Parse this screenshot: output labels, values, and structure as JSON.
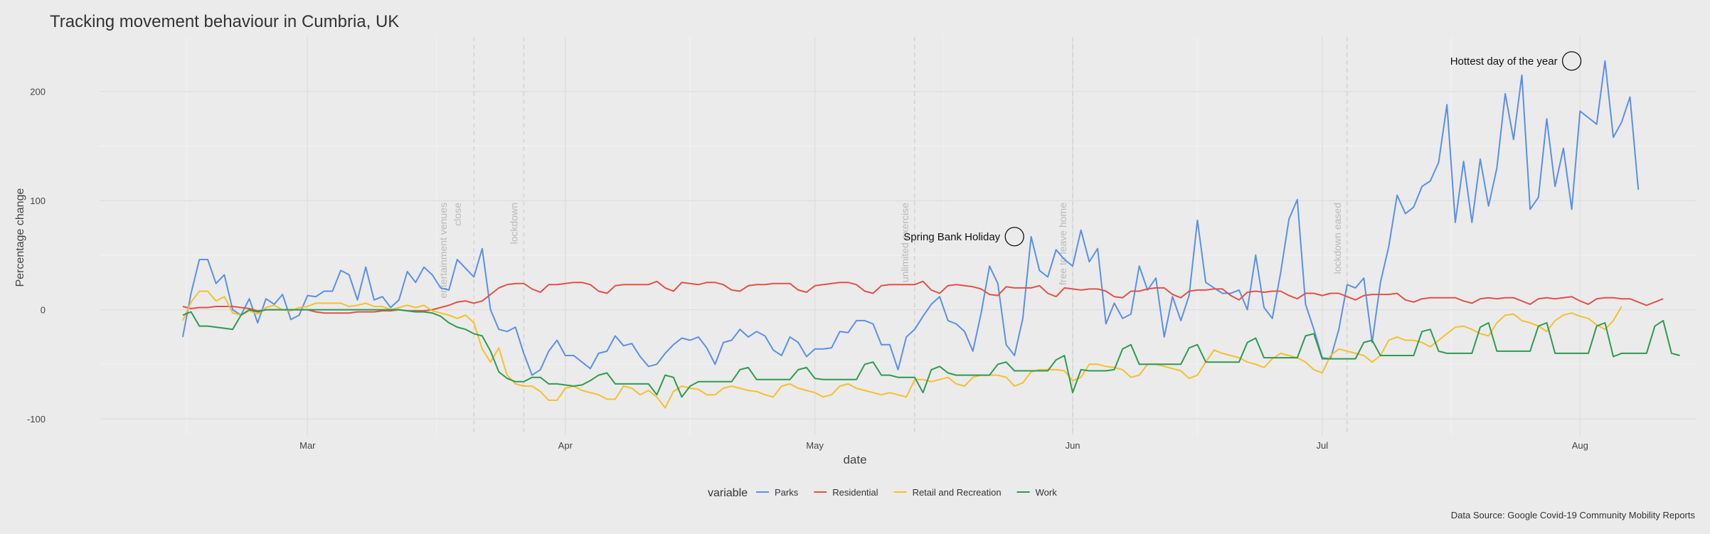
{
  "chart_data": {
    "type": "line",
    "title": "Tracking movement behaviour in Cumbria, UK",
    "xlabel": "date",
    "ylabel": "Percentage change",
    "caption": "Data Source: Google Covid-19 Community Mobility Reports",
    "x_start": "2020-02-15",
    "x_range": [
      "2020-02-05",
      "2020-08-15"
    ],
    "ylim": [
      -115,
      250
    ],
    "grid": true,
    "legend": {
      "title": "variable",
      "position": "bottom"
    },
    "x_ticks": [
      {
        "date": "2020-03-01",
        "label": "Mar"
      },
      {
        "date": "2020-04-01",
        "label": "Apr"
      },
      {
        "date": "2020-05-01",
        "label": "May"
      },
      {
        "date": "2020-06-01",
        "label": "Jun"
      },
      {
        "date": "2020-07-01",
        "label": "Jul"
      },
      {
        "date": "2020-08-01",
        "label": "Aug"
      }
    ],
    "y_ticks": [
      -100,
      0,
      100,
      200
    ],
    "events": [
      {
        "date": "2020-03-21",
        "lines": [
          "entertainment venues",
          "close"
        ]
      },
      {
        "date": "2020-03-27",
        "lines": [
          "lockdown"
        ]
      },
      {
        "date": "2020-05-13",
        "lines": [
          "unlimited exercise"
        ]
      },
      {
        "date": "2020-06-01",
        "lines": [
          "free to leave home"
        ]
      },
      {
        "date": "2020-07-04",
        "lines": [
          "lockdown eased"
        ]
      }
    ],
    "annotations": [
      {
        "label": "Spring Bank Holiday",
        "date": "2020-05-25",
        "y": 67
      },
      {
        "label": "Hottest day of the year",
        "date": "2020-07-31",
        "y": 228
      }
    ],
    "series": [
      {
        "name": "Parks",
        "color": "#5b8fe8",
        "values": [
          -25,
          15,
          46,
          46,
          24,
          32,
          0,
          -5,
          10,
          -12,
          10,
          5,
          14,
          -9,
          -5,
          13,
          12,
          17,
          17,
          36,
          32,
          9,
          39,
          9,
          12,
          2,
          9,
          35,
          25,
          39,
          32,
          20,
          18,
          46,
          38,
          30,
          56,
          0,
          -18,
          -20,
          -16,
          -40,
          -60,
          -55,
          -38,
          -28,
          -42,
          -42,
          -48,
          -54,
          -40,
          -38,
          -24,
          -33,
          -31,
          -43,
          -52,
          -50,
          -40,
          -32,
          -26,
          -28,
          -25,
          -35,
          -50,
          -30,
          -28,
          -18,
          -25,
          -20,
          -24,
          -37,
          -42,
          -25,
          -30,
          -43,
          -36,
          -36,
          -35,
          -20,
          -21,
          -10,
          -10,
          -13,
          -32,
          -32,
          -55,
          -25,
          -18,
          -6,
          5,
          12,
          -10,
          -13,
          -20,
          -38,
          -3,
          40,
          24,
          -32,
          -42,
          -8,
          67,
          36,
          30,
          55,
          46,
          40,
          73,
          44,
          56,
          -13,
          6,
          -8,
          -4,
          40,
          18,
          29,
          -25,
          12,
          -10,
          13,
          82,
          25,
          20,
          15,
          15,
          18,
          0,
          50,
          2,
          -8,
          34,
          83,
          101,
          5,
          -18,
          -44,
          -45,
          -18,
          23,
          20,
          29,
          -30,
          25,
          58,
          105,
          88,
          94,
          113,
          118,
          135,
          188,
          80,
          136,
          80,
          138,
          95,
          130,
          198,
          156,
          215,
          92,
          103,
          175,
          113,
          148,
          92,
          182,
          176,
          170,
          228,
          158,
          172,
          195,
          110
        ]
      },
      {
        "name": "Residential",
        "color": "#e0524a",
        "values": [
          3,
          1,
          2,
          2,
          3,
          3,
          3,
          2,
          1,
          -1,
          0,
          0,
          0,
          0,
          0,
          0,
          -2,
          -3,
          -3,
          -3,
          -3,
          -2,
          -2,
          -2,
          -1,
          -1,
          0,
          -1,
          -1,
          -1,
          0,
          2,
          4,
          7,
          8,
          6,
          8,
          14,
          20,
          23,
          24,
          24,
          19,
          16,
          23,
          23,
          24,
          25,
          25,
          23,
          17,
          15,
          22,
          23,
          23,
          23,
          23,
          26,
          20,
          17,
          25,
          24,
          23,
          25,
          25,
          23,
          18,
          17,
          22,
          23,
          23,
          24,
          24,
          24,
          18,
          16,
          22,
          23,
          24,
          25,
          25,
          23,
          17,
          15,
          22,
          23,
          23,
          23,
          23,
          26,
          18,
          15,
          22,
          23,
          22,
          21,
          19,
          14,
          13,
          21,
          20,
          20,
          20,
          22,
          15,
          12,
          20,
          19,
          18,
          19,
          19,
          17,
          12,
          11,
          17,
          17,
          19,
          20,
          20,
          14,
          11,
          17,
          18,
          18,
          19,
          19,
          13,
          9,
          16,
          17,
          16,
          17,
          17,
          13,
          10,
          15,
          15,
          13,
          15,
          15,
          12,
          9,
          13,
          14,
          14,
          14,
          15,
          9,
          7,
          10,
          11,
          11,
          11,
          11,
          8,
          6,
          10,
          11,
          10,
          11,
          11,
          8,
          5,
          10,
          11,
          10,
          11,
          12,
          8,
          5,
          10,
          11,
          11,
          10,
          10,
          7,
          4,
          7,
          10
        ]
      },
      {
        "name": "Retail and Recreation",
        "color": "#f5bf30",
        "values": [
          -10,
          7,
          17,
          17,
          8,
          12,
          -3,
          -5,
          -1,
          -4,
          2,
          4,
          0,
          -1,
          2,
          3,
          6,
          6,
          6,
          6,
          3,
          4,
          6,
          3,
          3,
          0,
          2,
          4,
          2,
          4,
          -1,
          -3,
          -5,
          -8,
          -5,
          -12,
          -36,
          -48,
          -35,
          -60,
          -68,
          -70,
          -70,
          -75,
          -83,
          -83,
          -72,
          -70,
          -74,
          -76,
          -78,
          -82,
          -82,
          -70,
          -72,
          -78,
          -74,
          -80,
          -90,
          -75,
          -70,
          -72,
          -73,
          -78,
          -78,
          -72,
          -70,
          -72,
          -74,
          -75,
          -78,
          -80,
          -70,
          -68,
          -72,
          -74,
          -76,
          -80,
          -78,
          -70,
          -68,
          -72,
          -74,
          -76,
          -78,
          -76,
          -78,
          -80,
          -64,
          -64,
          -66,
          -64,
          -62,
          -68,
          -70,
          -62,
          -60,
          -60,
          -60,
          -62,
          -70,
          -67,
          -57,
          -55,
          -55,
          -55,
          -56,
          -65,
          -62,
          -50,
          -50,
          -52,
          -53,
          -55,
          -62,
          -60,
          -50,
          -50,
          -52,
          -54,
          -56,
          -63,
          -60,
          -48,
          -37,
          -40,
          -42,
          -44,
          -48,
          -50,
          -53,
          -45,
          -40,
          -42,
          -44,
          -48,
          -55,
          -58,
          -42,
          -36,
          -38,
          -40,
          -42,
          -48,
          -42,
          -28,
          -25,
          -28,
          -28,
          -30,
          -34,
          -28,
          -22,
          -16,
          -15,
          -18,
          -22,
          -24,
          -12,
          -5,
          -4,
          -10,
          -12,
          -15,
          -20,
          -10,
          -5,
          -3,
          -6,
          -8,
          -14,
          -18,
          -10,
          3
        ]
      },
      {
        "name": "Work",
        "color": "#2e9a52",
        "values": [
          -5,
          -2,
          -15,
          -15,
          -16,
          -17,
          -18,
          -5,
          0,
          -2,
          0,
          0,
          0,
          0,
          0,
          0,
          0,
          0,
          0,
          0,
          0,
          0,
          0,
          0,
          0,
          0,
          0,
          -1,
          -2,
          -2,
          -3,
          -6,
          -12,
          -16,
          -18,
          -22,
          -24,
          -38,
          -57,
          -63,
          -66,
          -66,
          -62,
          -62,
          -68,
          -68,
          -69,
          -70,
          -69,
          -65,
          -60,
          -58,
          -68,
          -68,
          -68,
          -68,
          -68,
          -78,
          -60,
          -62,
          -80,
          -70,
          -66,
          -66,
          -66,
          -66,
          -66,
          -55,
          -53,
          -64,
          -64,
          -64,
          -64,
          -64,
          -55,
          -53,
          -63,
          -64,
          -64,
          -64,
          -64,
          -64,
          -50,
          -48,
          -60,
          -60,
          -62,
          -62,
          -62,
          -76,
          -55,
          -52,
          -58,
          -60,
          -60,
          -60,
          -60,
          -60,
          -50,
          -48,
          -56,
          -56,
          -56,
          -56,
          -56,
          -46,
          -42,
          -76,
          -55,
          -56,
          -56,
          -56,
          -55,
          -36,
          -32,
          -50,
          -50,
          -50,
          -50,
          -50,
          -50,
          -35,
          -32,
          -48,
          -48,
          -48,
          -48,
          -48,
          -30,
          -26,
          -44,
          -44,
          -44,
          -44,
          -44,
          -24,
          -22,
          -45,
          -45,
          -45,
          -45,
          -45,
          -30,
          -28,
          -42,
          -42,
          -42,
          -42,
          -42,
          -20,
          -18,
          -38,
          -40,
          -40,
          -40,
          -40,
          -16,
          -12,
          -38,
          -38,
          -38,
          -38,
          -38,
          -15,
          -12,
          -40,
          -40,
          -40,
          -40,
          -40,
          -15,
          -12,
          -43,
          -40,
          -40,
          -40,
          -40,
          -15,
          -10,
          -40,
          -42
        ]
      }
    ]
  }
}
